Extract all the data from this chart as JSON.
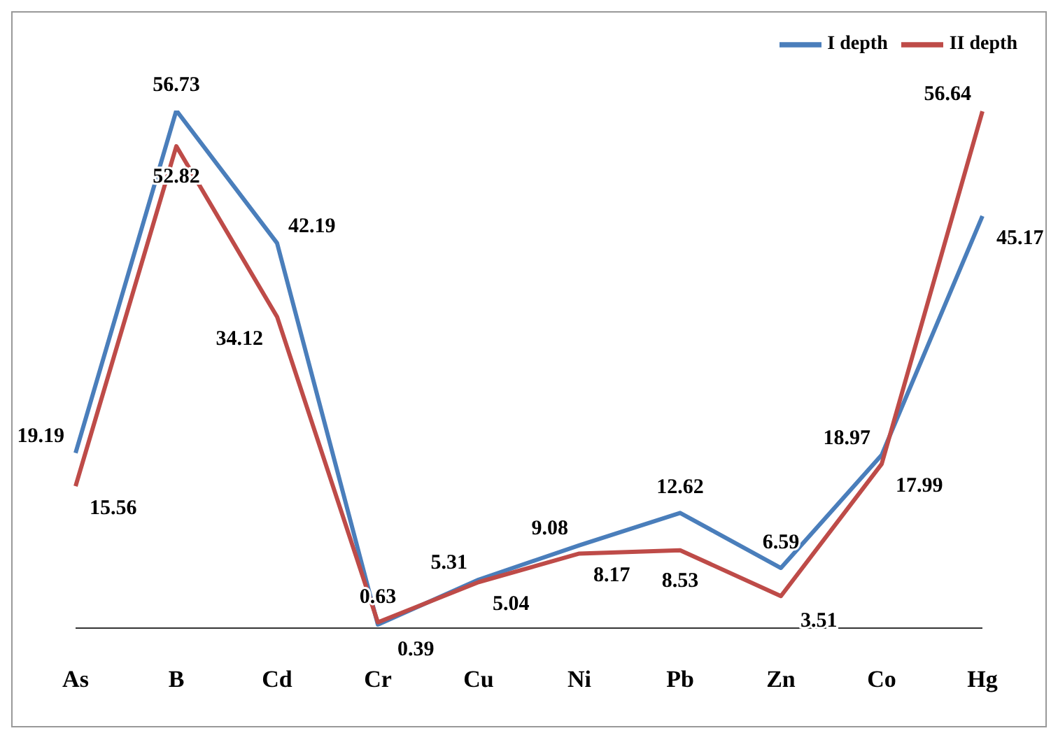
{
  "chart_data": {
    "type": "line",
    "categories": [
      "As",
      "B",
      "Cd",
      "Cr",
      "Cu",
      "Ni",
      "Pb",
      "Zn",
      "Co",
      "Hg"
    ],
    "series": [
      {
        "name": "I depth",
        "color": "#4a7ebb",
        "values": [
          19.19,
          56.73,
          42.19,
          0.39,
          5.31,
          9.08,
          12.62,
          6.59,
          18.97,
          45.17
        ]
      },
      {
        "name": "II depth",
        "color": "#be4b48",
        "values": [
          15.56,
          52.82,
          34.12,
          0.63,
          5.04,
          8.17,
          8.53,
          3.51,
          17.99,
          56.64
        ]
      }
    ],
    "data_labels": true,
    "tick_labels": "x",
    "legend": "top right",
    "marker": "none",
    "line_style": "solid",
    "grid": false
  }
}
